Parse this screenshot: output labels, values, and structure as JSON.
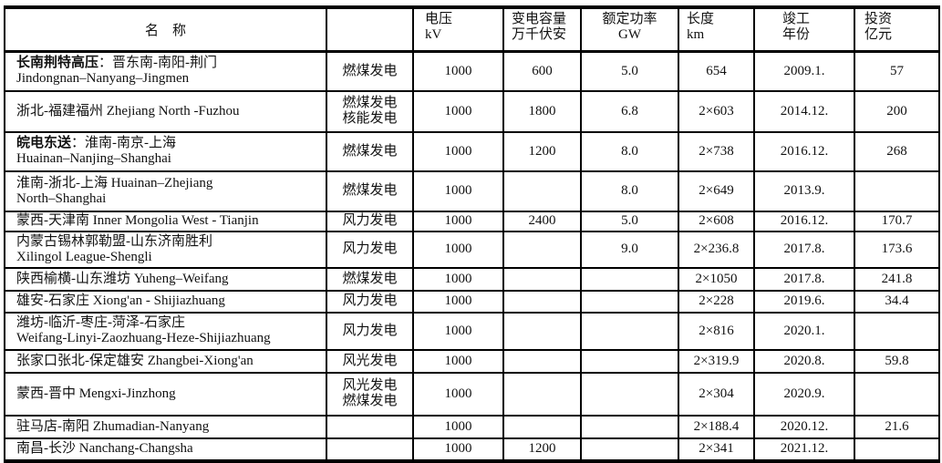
{
  "header": {
    "name": "名　称",
    "type": "",
    "voltage": [
      "电压",
      "kV"
    ],
    "capacity": [
      "变电容量",
      "万千伏安"
    ],
    "power": [
      "额定功率",
      "GW"
    ],
    "length": [
      "长度",
      "km"
    ],
    "year": [
      "竣工",
      "年份"
    ],
    "investment": [
      "投资",
      "亿元"
    ]
  },
  "rows": [
    {
      "bold": "长南荆特高压",
      "name": [
        "：晋东南-南阳-荆门",
        "Jindongnan–Nanyang–Jingmen"
      ],
      "type": [
        "燃煤发电"
      ],
      "voltage": "1000",
      "capacity": "600",
      "power": "5.0",
      "length": "654",
      "year": "2009.1.",
      "investment": "57"
    },
    {
      "bold": "",
      "name": [
        "浙北-福建福州 Zhejiang North -Fuzhou"
      ],
      "type": [
        "燃煤发电",
        "核能发电"
      ],
      "voltage": "1000",
      "capacity": "1800",
      "power": "6.8",
      "length": "2×603",
      "year": "2014.12.",
      "investment": "200"
    },
    {
      "bold": "皖电东送",
      "name": [
        "：淮南-南京-上海",
        "Huainan–Nanjing–Shanghai"
      ],
      "type": [
        "燃煤发电"
      ],
      "voltage": "1000",
      "capacity": "1200",
      "power": "8.0",
      "length": "2×738",
      "year": "2016.12.",
      "investment": "268"
    },
    {
      "bold": "",
      "name": [
        "淮南-浙北-上海 Huainan–Zhejiang",
        "North–Shanghai"
      ],
      "type": [
        "燃煤发电"
      ],
      "voltage": "1000",
      "capacity": "",
      "power": "8.0",
      "length": "2×649",
      "year": "2013.9.",
      "investment": ""
    },
    {
      "bold": "",
      "name": [
        "蒙西-天津南 Inner Mongolia West - Tianjin"
      ],
      "type": [
        "风力发电"
      ],
      "voltage": "1000",
      "capacity": "2400",
      "power": "5.0",
      "length": "2×608",
      "year": "2016.12.",
      "investment": "170.7"
    },
    {
      "bold": "",
      "name": [
        "内蒙古锡林郭勒盟-山东济南胜利",
        "Xilingol League-Shengli"
      ],
      "type": [
        "风力发电"
      ],
      "voltage": "1000",
      "capacity": "",
      "power": "9.0",
      "length": "2×236.8",
      "year": "2017.8.",
      "investment": "173.6"
    },
    {
      "bold": "",
      "name": [
        "陕西榆横-山东潍坊 Yuheng–Weifang"
      ],
      "type": [
        "燃煤发电"
      ],
      "voltage": "1000",
      "capacity": "",
      "power": "",
      "length": "2×1050",
      "year": "2017.8.",
      "investment": "241.8"
    },
    {
      "bold": "",
      "name": [
        "雄安-石家庄 Xiong'an - Shijiazhuang"
      ],
      "type": [
        "风力发电"
      ],
      "voltage": "1000",
      "capacity": "",
      "power": "",
      "length": "2×228",
      "year": "2019.6.",
      "investment": "34.4"
    },
    {
      "bold": "",
      "name": [
        "潍坊-临沂-枣庄-菏泽-石家庄",
        "Weifang-Linyi-Zaozhuang-Heze-Shijiazhuang"
      ],
      "type": [
        "风力发电"
      ],
      "voltage": "1000",
      "capacity": "",
      "power": "",
      "length": "2×816",
      "year": "2020.1.",
      "investment": ""
    },
    {
      "bold": "",
      "name": [
        "张家口张北-保定雄安 Zhangbei-Xiong'an"
      ],
      "type": [
        "风光发电"
      ],
      "voltage": "1000",
      "capacity": "",
      "power": "",
      "length": "2×319.9",
      "year": "2020.8.",
      "investment": "59.8"
    },
    {
      "bold": "",
      "name": [
        "蒙西-晋中 Mengxi-Jinzhong"
      ],
      "type": [
        "风光发电",
        "燃煤发电"
      ],
      "voltage": "1000",
      "capacity": "",
      "power": "",
      "length": "2×304",
      "year": "2020.9.",
      "investment": ""
    },
    {
      "bold": "",
      "name": [
        "驻马店-南阳 Zhumadian-Nanyang"
      ],
      "type": [],
      "voltage": "1000",
      "capacity": "",
      "power": "",
      "length": "2×188.4",
      "year": "2020.12.",
      "investment": "21.6"
    },
    {
      "bold": "",
      "name": [
        "南昌-长沙 Nanchang-Changsha"
      ],
      "type": [],
      "voltage": "1000",
      "capacity": "1200",
      "power": "",
      "length": "2×341",
      "year": "2021.12.",
      "investment": ""
    }
  ]
}
